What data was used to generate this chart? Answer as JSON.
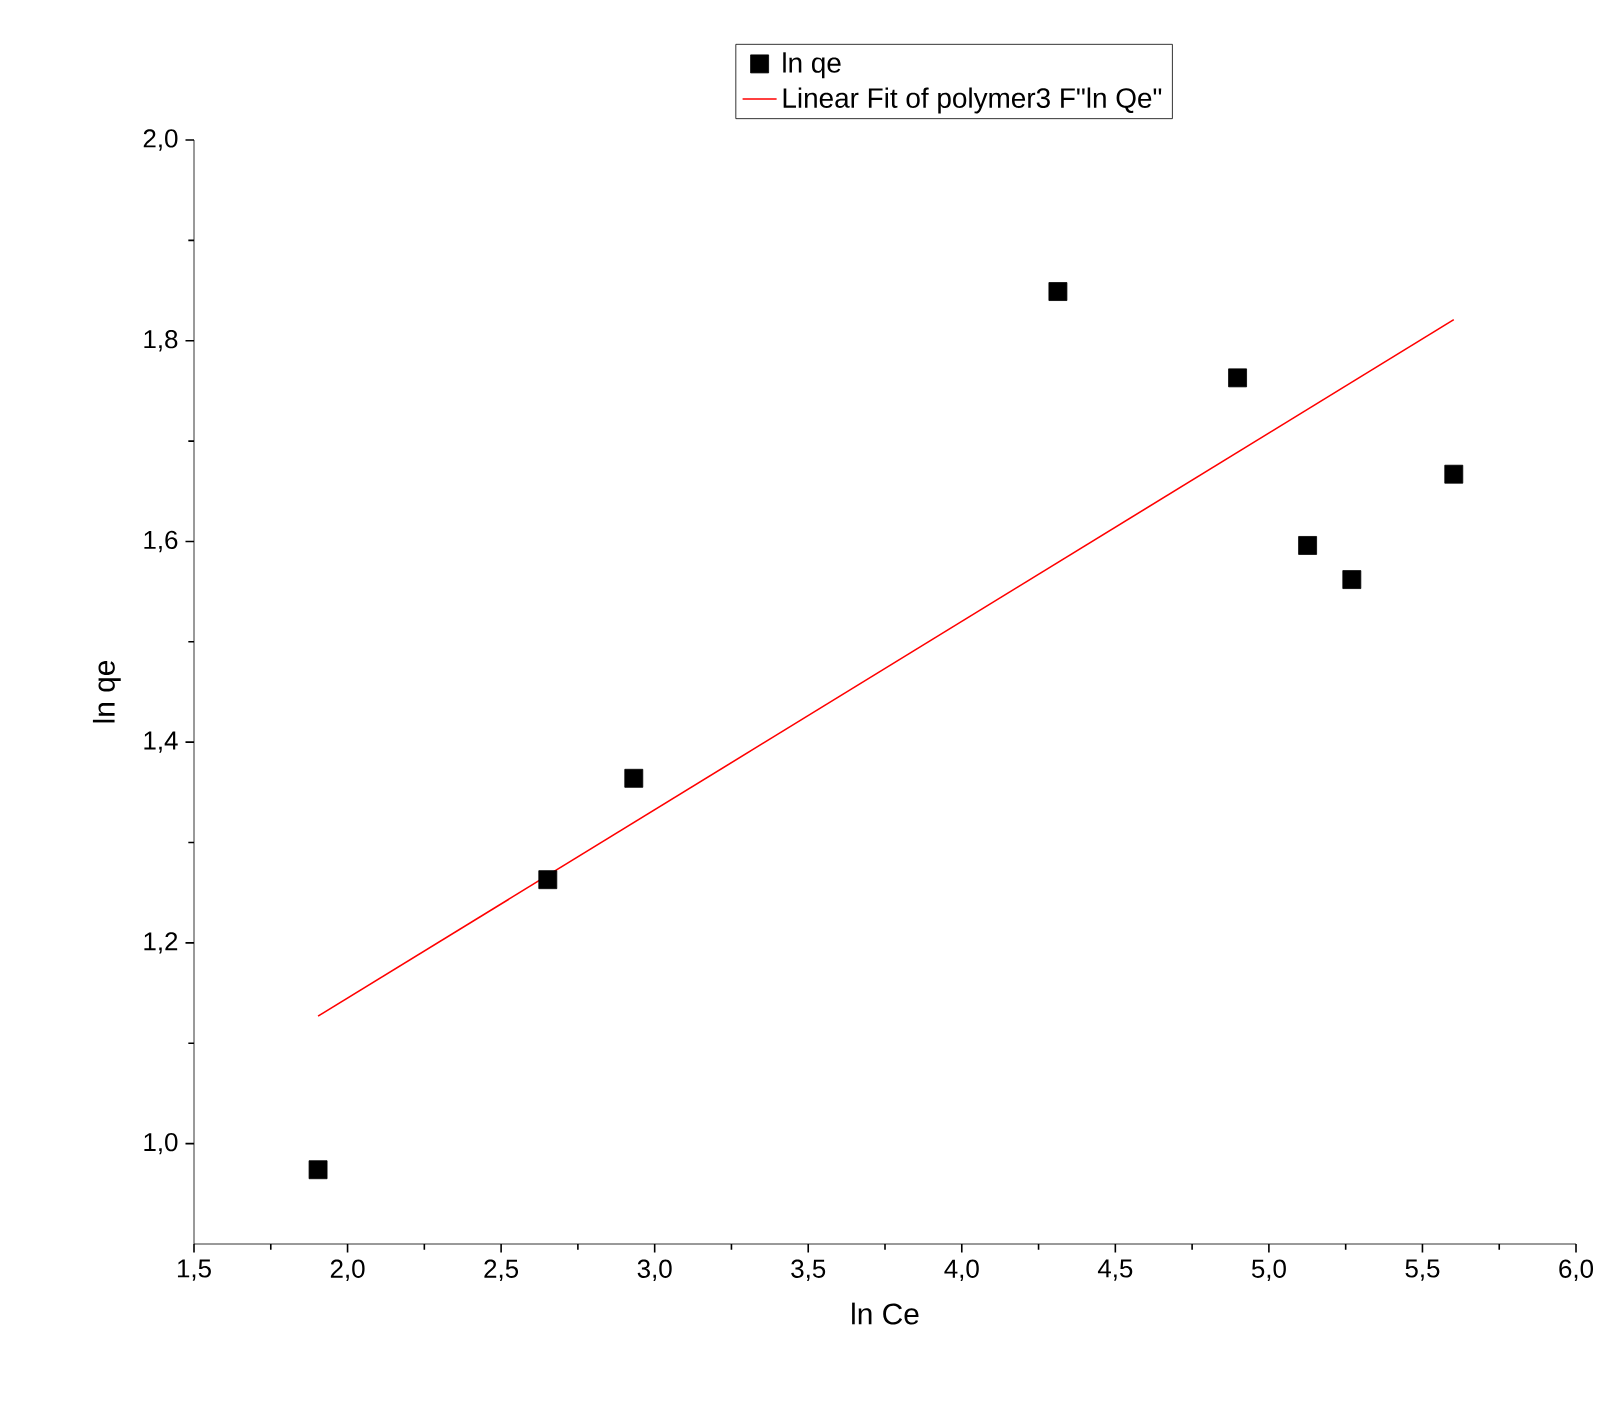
{
  "chart_data": {
    "type": "scatter",
    "xlabel": "ln Ce",
    "ylabel": "ln qe",
    "series": [
      {
        "name": "ln qe",
        "color": "#000000",
        "marker": "square",
        "x": [
          1.904,
          2.652,
          2.932,
          4.313,
          4.898,
          5.126,
          5.27,
          5.602
        ],
        "values": [
          0.974,
          1.263,
          1.364,
          1.849,
          1.763,
          1.596,
          1.562,
          1.667
        ]
      },
      {
        "name": "Linear Fit of polymer3 F\"ln Qe\"",
        "type": "line",
        "color": "#ff0000",
        "marker": "none",
        "x": [
          1.904,
          5.602
        ],
        "values": [
          1.127,
          1.821
        ]
      }
    ],
    "xlim": [
      1.5,
      6.0
    ],
    "ylim": [
      0.9,
      2.0
    ],
    "xticks": [
      {
        "value": 1.5,
        "label": "1,5"
      },
      {
        "value": 2.0,
        "label": "2,0"
      },
      {
        "value": 2.5,
        "label": "2,5"
      },
      {
        "value": 3.0,
        "label": "3,0"
      },
      {
        "value": 3.5,
        "label": "3,5"
      },
      {
        "value": 4.0,
        "label": "4,0"
      },
      {
        "value": 4.5,
        "label": "4,5"
      },
      {
        "value": 5.0,
        "label": "5,0"
      },
      {
        "value": 5.5,
        "label": "5,5"
      },
      {
        "value": 6.0,
        "label": "6,0"
      }
    ],
    "yticks": [
      {
        "value": 1.0,
        "label": "1,0"
      },
      {
        "value": 1.2,
        "label": "1,2"
      },
      {
        "value": 1.4,
        "label": "1,4"
      },
      {
        "value": 1.6,
        "label": "1,6"
      },
      {
        "value": 1.8,
        "label": "1,8"
      },
      {
        "value": 2.0,
        "label": "2,0"
      }
    ],
    "grid": false,
    "legend": "top"
  }
}
